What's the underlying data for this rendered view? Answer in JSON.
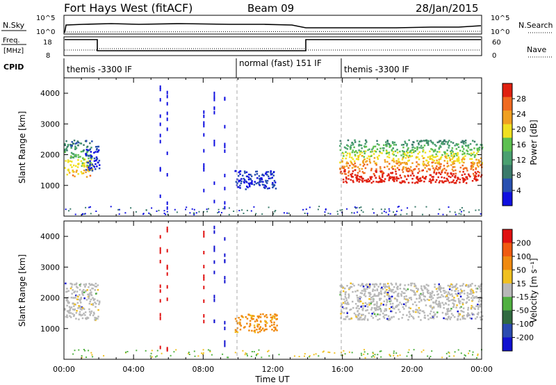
{
  "header": {
    "station": "Fort Hays West (fitACF)",
    "beam": "Beam 09",
    "date": "28/Jan/2015"
  },
  "panels": {
    "nsky": {
      "left_label": "N.Sky",
      "left_ticks": [
        "10^5",
        "10^0"
      ],
      "right_ticks": [
        "10^5",
        "10^0"
      ],
      "right_label": "N.Search"
    },
    "freq": {
      "left_label_1": "Freq.",
      "left_label_2": "[MHz]",
      "left_ticks": [
        "18",
        "8"
      ],
      "right_ticks": [
        "60",
        "0"
      ],
      "right_label": "Nave"
    },
    "cpid": {
      "label": "CPID",
      "segments": [
        {
          "text": "themis -3300 IF",
          "start": 0,
          "end": 10
        },
        {
          "text": "normal (fast) 151 IF",
          "start": 10,
          "end": 16
        },
        {
          "text": "themis -3300 IF",
          "start": 16,
          "end": 24
        }
      ]
    }
  },
  "colors": {
    "power": [
      "#1010e0",
      "#2850b0",
      "#3a7a6a",
      "#4aa070",
      "#5cc050",
      "#f0e020",
      "#f0a020",
      "#f06a20",
      "#e02010"
    ],
    "velocity": [
      "#1010d0",
      "#2a4ab0",
      "#306a40",
      "#50b040",
      "#b8b8b8",
      "#f0c020",
      "#f08a10",
      "#f05a10",
      "#e01010"
    ]
  },
  "chart_data": [
    {
      "type": "heatmap",
      "name": "power",
      "ylabel": "Slant Range [km]",
      "xlim": [
        0,
        24
      ],
      "ylim": [
        0,
        4500
      ],
      "yticks": [
        1000,
        2000,
        3000,
        4000
      ],
      "colorbar": {
        "label": "Power [dB]",
        "ticks": [
          "28",
          "24",
          "20",
          "16",
          "12",
          "8",
          "4"
        ]
      },
      "regions": [
        {
          "x": [
            0.0,
            1.6
          ],
          "y": [
            1300,
            2500
          ],
          "level": "mid"
        },
        {
          "x": [
            1.2,
            2.0
          ],
          "y": [
            1500,
            2300
          ],
          "level": "low"
        },
        {
          "x": [
            9.8,
            12.2
          ],
          "y": [
            900,
            1500
          ],
          "level": "low"
        },
        {
          "x": [
            15.8,
            24.0
          ],
          "y": [
            1100,
            2500
          ],
          "level": "high"
        }
      ]
    },
    {
      "type": "heatmap",
      "name": "velocity",
      "ylabel": "Slant Range [km]",
      "xlabel": "Time UT",
      "xlim": [
        0,
        24
      ],
      "ylim": [
        0,
        4500
      ],
      "yticks": [
        1000,
        2000,
        3000,
        4000
      ],
      "xticks": [
        "00:00",
        "04:00",
        "08:00",
        "12:00",
        "16:00",
        "20:00",
        "00:00"
      ],
      "colorbar": {
        "label": "Velocity [m s⁻¹]",
        "ticks": [
          "200",
          "100",
          "50",
          "15",
          "-15",
          "-50",
          "-100",
          "-200"
        ]
      },
      "regions": [
        {
          "x": [
            0.0,
            2.0
          ],
          "y": [
            1300,
            2500
          ],
          "level": "ground"
        },
        {
          "x": [
            9.8,
            12.2
          ],
          "y": [
            900,
            1500
          ],
          "level": "away"
        },
        {
          "x": [
            15.8,
            24.0
          ],
          "y": [
            1300,
            2500
          ],
          "level": "ground"
        }
      ]
    }
  ]
}
